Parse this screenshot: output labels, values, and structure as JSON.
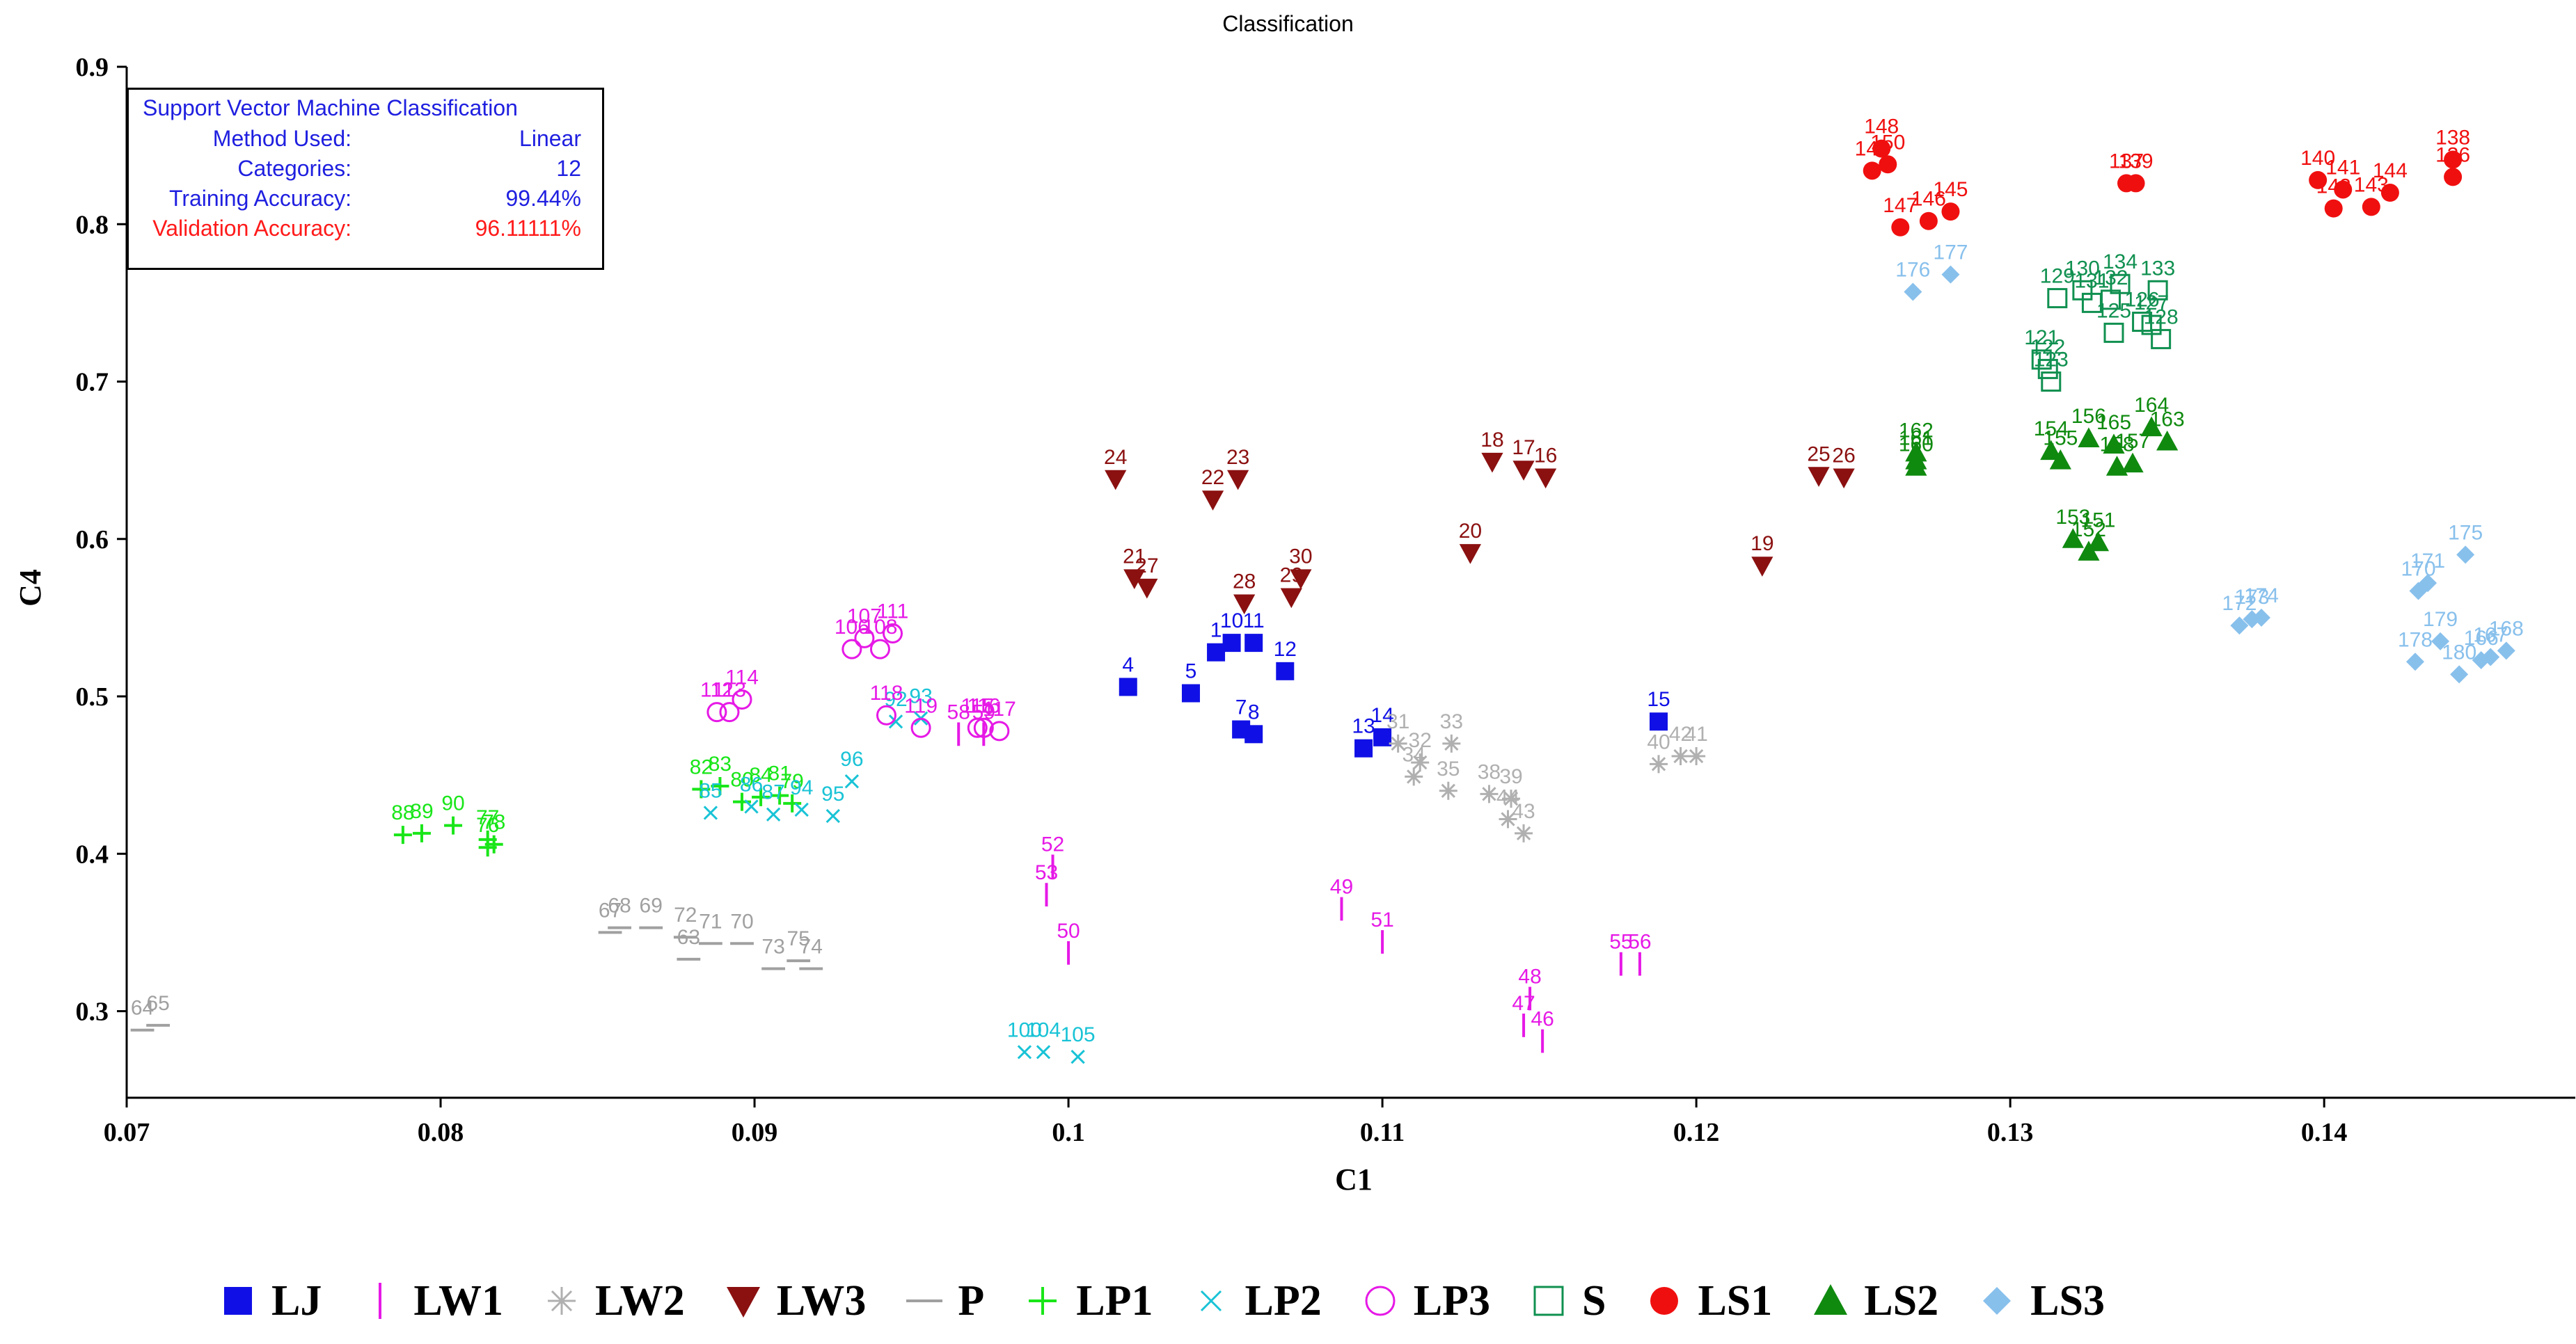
{
  "chart_data": {
    "type": "scatter",
    "title": "Classification",
    "xlabel": "C1",
    "ylabel": "C4",
    "xlim": [
      0.07,
      0.148
    ],
    "ylim": [
      0.245,
      0.9
    ],
    "xticks": [
      "0.07",
      "0.08",
      "0.09",
      "0.1",
      "0.11",
      "0.12",
      "0.13",
      "0.14"
    ],
    "yticks": [
      "0.3",
      "0.4",
      "0.5",
      "0.6",
      "0.7",
      "0.8",
      "0.9"
    ],
    "info": {
      "title": "Support Vector Machine Classification",
      "rows": [
        {
          "key": "Method Used:",
          "value": "Linear",
          "color": "#1f1fe0"
        },
        {
          "key": "Categories:",
          "value": "12",
          "color": "#1f1fe0"
        },
        {
          "key": "Training Accuracy:",
          "value": "99.44%",
          "color": "#1f1fe0"
        },
        {
          "key": "Validation Accuracy:",
          "value": "96.11111%",
          "color": "#ff1a1a"
        }
      ]
    },
    "series": [
      {
        "name": "LJ",
        "marker": "square",
        "color": "#1010e6",
        "points": [
          {
            "label": "4",
            "x": 0.1019,
            "y": 0.506
          },
          {
            "label": "1",
            "x": 0.1047,
            "y": 0.528
          },
          {
            "label": "5",
            "x": 0.1039,
            "y": 0.502
          },
          {
            "label": "10",
            "x": 0.1052,
            "y": 0.534
          },
          {
            "label": "11",
            "x": 0.1059,
            "y": 0.534
          },
          {
            "label": "12",
            "x": 0.1069,
            "y": 0.516
          },
          {
            "label": "7",
            "x": 0.1055,
            "y": 0.479
          },
          {
            "label": "8",
            "x": 0.1059,
            "y": 0.476
          },
          {
            "label": "13",
            "x": 0.1094,
            "y": 0.467
          },
          {
            "label": "14",
            "x": 0.11,
            "y": 0.474
          },
          {
            "label": "15",
            "x": 0.1188,
            "y": 0.484
          }
        ]
      },
      {
        "name": "LW1",
        "marker": "vbar",
        "color": "#e619e6",
        "points": [
          {
            "label": "52",
            "x": 0.0995,
            "y": 0.392
          },
          {
            "label": "53",
            "x": 0.0993,
            "y": 0.374
          },
          {
            "label": "49",
            "x": 0.1087,
            "y": 0.365
          },
          {
            "label": "51",
            "x": 0.11,
            "y": 0.344
          },
          {
            "label": "50",
            "x": 0.1,
            "y": 0.337
          },
          {
            "label": "48",
            "x": 0.1147,
            "y": 0.308
          },
          {
            "label": "47",
            "x": 0.1145,
            "y": 0.291
          },
          {
            "label": "46",
            "x": 0.1151,
            "y": 0.281
          },
          {
            "label": "55",
            "x": 0.1176,
            "y": 0.33
          },
          {
            "label": "56",
            "x": 0.1182,
            "y": 0.33
          },
          {
            "label": "58",
            "x": 0.0965,
            "y": 0.476
          },
          {
            "label": "59",
            "x": 0.0973,
            "y": 0.476
          }
        ]
      },
      {
        "name": "LW2",
        "marker": "asterisk",
        "color": "#b0b0b0",
        "points": [
          {
            "label": "31",
            "x": 0.1105,
            "y": 0.47
          },
          {
            "label": "32",
            "x": 0.1112,
            "y": 0.458
          },
          {
            "label": "33",
            "x": 0.1122,
            "y": 0.47
          },
          {
            "label": "34",
            "x": 0.111,
            "y": 0.449
          },
          {
            "label": "35",
            "x": 0.1121,
            "y": 0.44
          },
          {
            "label": "38",
            "x": 0.1134,
            "y": 0.438
          },
          {
            "label": "39",
            "x": 0.1141,
            "y": 0.435
          },
          {
            "label": "43",
            "x": 0.1145,
            "y": 0.413
          },
          {
            "label": "40",
            "x": 0.1188,
            "y": 0.457
          },
          {
            "label": "41",
            "x": 0.12,
            "y": 0.462
          },
          {
            "label": "42",
            "x": 0.1195,
            "y": 0.462
          },
          {
            "label": "44",
            "x": 0.114,
            "y": 0.422
          }
        ]
      },
      {
        "name": "LW3",
        "marker": "triangle-down",
        "color": "#8b1010",
        "points": [
          {
            "label": "24",
            "x": 0.1015,
            "y": 0.638
          },
          {
            "label": "22",
            "x": 0.1046,
            "y": 0.625
          },
          {
            "label": "23",
            "x": 0.1054,
            "y": 0.638
          },
          {
            "label": "21",
            "x": 0.1021,
            "y": 0.575
          },
          {
            "label": "27",
            "x": 0.1025,
            "y": 0.569
          },
          {
            "label": "28",
            "x": 0.1056,
            "y": 0.559
          },
          {
            "label": "29",
            "x": 0.1071,
            "y": 0.563
          },
          {
            "label": "30",
            "x": 0.1074,
            "y": 0.575
          },
          {
            "label": "18",
            "x": 0.1135,
            "y": 0.649
          },
          {
            "label": "17",
            "x": 0.1145,
            "y": 0.644
          },
          {
            "label": "16",
            "x": 0.1152,
            "y": 0.639
          },
          {
            "label": "20",
            "x": 0.1128,
            "y": 0.591
          },
          {
            "label": "19",
            "x": 0.1221,
            "y": 0.583
          },
          {
            "label": "25",
            "x": 0.1239,
            "y": 0.64
          },
          {
            "label": "26",
            "x": 0.1247,
            "y": 0.639
          }
        ]
      },
      {
        "name": "P",
        "marker": "hbar",
        "color": "#a0a0a0",
        "points": [
          {
            "label": "64",
            "x": 0.0705,
            "y": 0.288
          },
          {
            "label": "65",
            "x": 0.071,
            "y": 0.291
          },
          {
            "label": "67",
            "x": 0.0854,
            "y": 0.35
          },
          {
            "label": "68",
            "x": 0.0857,
            "y": 0.353
          },
          {
            "label": "69",
            "x": 0.0867,
            "y": 0.353
          },
          {
            "label": "72",
            "x": 0.0878,
            "y": 0.347
          },
          {
            "label": "71",
            "x": 0.0886,
            "y": 0.343
          },
          {
            "label": "63",
            "x": 0.0879,
            "y": 0.333
          },
          {
            "label": "70",
            "x": 0.0896,
            "y": 0.343
          },
          {
            "label": "73",
            "x": 0.0906,
            "y": 0.327
          },
          {
            "label": "74",
            "x": 0.0918,
            "y": 0.327
          },
          {
            "label": "75",
            "x": 0.0914,
            "y": 0.332
          }
        ]
      },
      {
        "name": "LP1",
        "marker": "plus",
        "color": "#19e619",
        "points": [
          {
            "label": "88",
            "x": 0.0788,
            "y": 0.412
          },
          {
            "label": "89",
            "x": 0.0794,
            "y": 0.413
          },
          {
            "label": "90",
            "x": 0.0804,
            "y": 0.418
          },
          {
            "label": "77",
            "x": 0.0815,
            "y": 0.409
          },
          {
            "label": "76",
            "x": 0.0815,
            "y": 0.404
          },
          {
            "label": "78",
            "x": 0.0817,
            "y": 0.406
          },
          {
            "label": "82",
            "x": 0.0883,
            "y": 0.441
          },
          {
            "label": "83",
            "x": 0.0889,
            "y": 0.443
          },
          {
            "label": "84",
            "x": 0.0902,
            "y": 0.436
          },
          {
            "label": "80",
            "x": 0.0896,
            "y": 0.433
          },
          {
            "label": "81",
            "x": 0.0908,
            "y": 0.437
          },
          {
            "label": "79",
            "x": 0.0912,
            "y": 0.432
          }
        ]
      },
      {
        "name": "LP2",
        "marker": "x",
        "color": "#19c3d6",
        "points": [
          {
            "label": "95",
            "x": 0.0925,
            "y": 0.424
          },
          {
            "label": "96",
            "x": 0.0931,
            "y": 0.446
          },
          {
            "label": "92",
            "x": 0.0945,
            "y": 0.484
          },
          {
            "label": "93",
            "x": 0.0953,
            "y": 0.486
          },
          {
            "label": "100",
            "x": 0.0986,
            "y": 0.274
          },
          {
            "label": "104",
            "x": 0.0992,
            "y": 0.274
          },
          {
            "label": "105",
            "x": 0.1003,
            "y": 0.271
          },
          {
            "label": "85",
            "x": 0.0886,
            "y": 0.426
          },
          {
            "label": "86",
            "x": 0.0899,
            "y": 0.43
          },
          {
            "label": "87",
            "x": 0.0906,
            "y": 0.425
          },
          {
            "label": "94",
            "x": 0.0915,
            "y": 0.428
          }
        ]
      },
      {
        "name": "LP3",
        "marker": "circle",
        "color": "#e619e6",
        "points": [
          {
            "label": "112",
            "x": 0.0888,
            "y": 0.49
          },
          {
            "label": "113",
            "x": 0.0892,
            "y": 0.49
          },
          {
            "label": "114",
            "x": 0.0896,
            "y": 0.498
          },
          {
            "label": "106",
            "x": 0.0931,
            "y": 0.53
          },
          {
            "label": "107",
            "x": 0.0935,
            "y": 0.537
          },
          {
            "label": "108",
            "x": 0.094,
            "y": 0.53
          },
          {
            "label": "111",
            "x": 0.0944,
            "y": 0.54
          },
          {
            "label": "118",
            "x": 0.0942,
            "y": 0.488
          },
          {
            "label": "119",
            "x": 0.0953,
            "y": 0.48
          },
          {
            "label": "115",
            "x": 0.0971,
            "y": 0.48
          },
          {
            "label": "116",
            "x": 0.0973,
            "y": 0.48
          },
          {
            "label": "117",
            "x": 0.0978,
            "y": 0.478
          }
        ]
      },
      {
        "name": "S",
        "marker": "square-open",
        "color": "#109050",
        "points": [
          {
            "label": "129",
            "x": 0.1315,
            "y": 0.753
          },
          {
            "label": "121",
            "x": 0.131,
            "y": 0.714
          },
          {
            "label": "122",
            "x": 0.1312,
            "y": 0.708
          },
          {
            "label": "123",
            "x": 0.1313,
            "y": 0.7
          },
          {
            "label": "130",
            "x": 0.1323,
            "y": 0.758
          },
          {
            "label": "131",
            "x": 0.1326,
            "y": 0.75
          },
          {
            "label": "132",
            "x": 0.1332,
            "y": 0.752
          },
          {
            "label": "134",
            "x": 0.1335,
            "y": 0.762
          },
          {
            "label": "133",
            "x": 0.1347,
            "y": 0.758
          },
          {
            "label": "125",
            "x": 0.1333,
            "y": 0.731
          },
          {
            "label": "126",
            "x": 0.1342,
            "y": 0.738
          },
          {
            "label": "127",
            "x": 0.1345,
            "y": 0.736
          },
          {
            "label": "128",
            "x": 0.1348,
            "y": 0.727
          }
        ]
      },
      {
        "name": "LS1",
        "marker": "circle-filled",
        "color": "#f00f0f",
        "points": [
          {
            "label": "148",
            "x": 0.1259,
            "y": 0.848
          },
          {
            "label": "149",
            "x": 0.1256,
            "y": 0.834
          },
          {
            "label": "150",
            "x": 0.1261,
            "y": 0.838
          },
          {
            "label": "147",
            "x": 0.1265,
            "y": 0.798
          },
          {
            "label": "146",
            "x": 0.1274,
            "y": 0.802
          },
          {
            "label": "145",
            "x": 0.1281,
            "y": 0.808
          },
          {
            "label": "137",
            "x": 0.1337,
            "y": 0.826
          },
          {
            "label": "139",
            "x": 0.134,
            "y": 0.826
          },
          {
            "label": "140",
            "x": 0.1398,
            "y": 0.828
          },
          {
            "label": "141",
            "x": 0.1406,
            "y": 0.822
          },
          {
            "label": "142",
            "x": 0.1403,
            "y": 0.81
          },
          {
            "label": "143",
            "x": 0.1415,
            "y": 0.811
          },
          {
            "label": "144",
            "x": 0.1421,
            "y": 0.82
          },
          {
            "label": "138",
            "x": 0.1441,
            "y": 0.841
          },
          {
            "label": "136",
            "x": 0.1441,
            "y": 0.83
          }
        ]
      },
      {
        "name": "LS2",
        "marker": "triangle-up",
        "color": "#0f8a0f",
        "points": [
          {
            "label": "162",
            "x": 0.127,
            "y": 0.655
          },
          {
            "label": "161",
            "x": 0.127,
            "y": 0.65
          },
          {
            "label": "160",
            "x": 0.127,
            "y": 0.646
          },
          {
            "label": "154",
            "x": 0.1313,
            "y": 0.656
          },
          {
            "label": "155",
            "x": 0.1316,
            "y": 0.65
          },
          {
            "label": "153",
            "x": 0.132,
            "y": 0.6
          },
          {
            "label": "152",
            "x": 0.1325,
            "y": 0.592
          },
          {
            "label": "151",
            "x": 0.1328,
            "y": 0.598
          },
          {
            "label": "156",
            "x": 0.1325,
            "y": 0.664
          },
          {
            "label": "165",
            "x": 0.1333,
            "y": 0.66
          },
          {
            "label": "158",
            "x": 0.1334,
            "y": 0.646
          },
          {
            "label": "157",
            "x": 0.1339,
            "y": 0.648
          },
          {
            "label": "164",
            "x": 0.1345,
            "y": 0.671
          },
          {
            "label": "163",
            "x": 0.135,
            "y": 0.662
          }
        ]
      },
      {
        "name": "LS3",
        "marker": "diamond",
        "color": "#88c0ec",
        "points": [
          {
            "label": "176",
            "x": 0.1269,
            "y": 0.757
          },
          {
            "label": "177",
            "x": 0.1281,
            "y": 0.768
          },
          {
            "label": "172",
            "x": 0.1373,
            "y": 0.545
          },
          {
            "label": "173",
            "x": 0.1377,
            "y": 0.549
          },
          {
            "label": "174",
            "x": 0.138,
            "y": 0.55
          },
          {
            "label": "170",
            "x": 0.143,
            "y": 0.567
          },
          {
            "label": "171",
            "x": 0.1433,
            "y": 0.572
          },
          {
            "label": "179",
            "x": 0.1437,
            "y": 0.535
          },
          {
            "label": "178",
            "x": 0.1429,
            "y": 0.522
          },
          {
            "label": "175",
            "x": 0.1445,
            "y": 0.59
          },
          {
            "label": "180",
            "x": 0.1443,
            "y": 0.514
          },
          {
            "label": "166",
            "x": 0.145,
            "y": 0.523
          },
          {
            "label": "167",
            "x": 0.1453,
            "y": 0.525
          },
          {
            "label": "168",
            "x": 0.1458,
            "y": 0.529
          }
        ]
      }
    ]
  }
}
